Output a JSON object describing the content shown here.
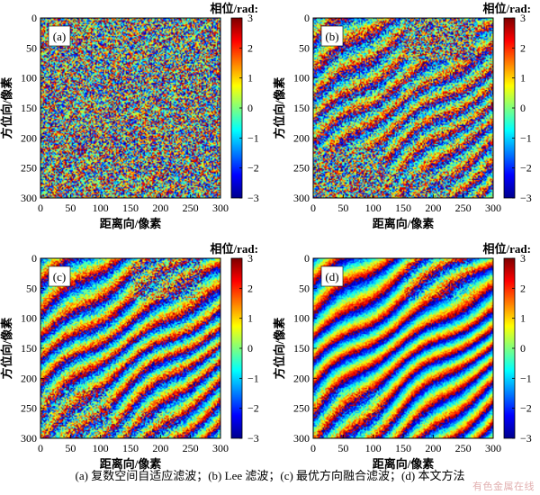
{
  "chart_data": {
    "type": "heatmap",
    "description_level": "interferometric phase maps, 4 panels, 300x300 pixels",
    "x_range": [
      0,
      300
    ],
    "y_range": [
      0,
      300
    ],
    "y_axis_inverted": true,
    "x_ticks": [
      "0",
      "50",
      "100",
      "150",
      "200",
      "250",
      "300"
    ],
    "y_ticks": [
      "0",
      "50",
      "100",
      "150",
      "200",
      "250",
      "300"
    ],
    "xlabel": "距离向/像素",
    "ylabel": "方位向/像素",
    "colorbar": {
      "title": "相位/rad:",
      "range": [
        -3,
        3
      ],
      "ticks": [
        "3",
        "2",
        "1",
        "0",
        "−1",
        "−2",
        "−3"
      ],
      "colormap": [
        "#00008f",
        "#0000ff",
        "#007fff",
        "#00ffff",
        "#7fff7f",
        "#ffff00",
        "#ff7f00",
        "#ff0000",
        "#7f0000"
      ]
    },
    "panels": [
      {
        "label": "(a)",
        "noise": 0.95
      },
      {
        "label": "(b)",
        "noise": 0.55
      },
      {
        "label": "(c)",
        "noise": 0.35
      },
      {
        "label": "(d)",
        "noise": 0.2
      }
    ]
  },
  "caption": "(a)  复数空间自适应滤波；(b) Lee 滤波；(c)  最优方向融合滤波；(d)  本文方法",
  "watermark": "有色金属在线"
}
